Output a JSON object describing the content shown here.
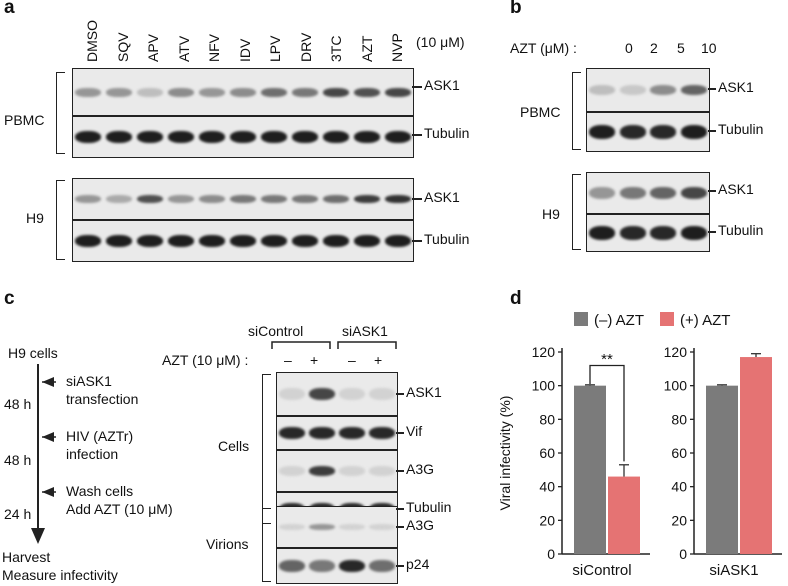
{
  "panels": {
    "a": "a",
    "b": "b",
    "c": "c",
    "d": "d"
  },
  "a": {
    "lanes": [
      "DMSO",
      "SQV",
      "APV",
      "ATV",
      "NFV",
      "IDV",
      "LPV",
      "DRV",
      "3TC",
      "AZT",
      "NVP"
    ],
    "conc": "(10 μM)",
    "groups": [
      "PBMC",
      "H9"
    ],
    "blot_labels": [
      "ASK1",
      "Tubulin",
      "ASK1",
      "Tubulin"
    ]
  },
  "b": {
    "azt_label": "AZT (μM) :",
    "conc": [
      "0",
      "2",
      "5",
      "10"
    ],
    "groups": [
      "PBMC",
      "H9"
    ],
    "blot_labels": [
      "ASK1",
      "Tubulin",
      "ASK1",
      "Tubulin"
    ]
  },
  "c": {
    "timeline": {
      "start": "H9 cells",
      "steps": [
        {
          "time": "48 h",
          "text": "siASK1\ntransfection"
        },
        {
          "time": "48 h",
          "text": "HIV (AZTr)\ninfection"
        },
        {
          "time": "24 h",
          "text": "Wash cells\nAdd AZT (10 μM)"
        }
      ],
      "end": "Harvest\nMeasure infectivity"
    },
    "groups": [
      "siControl",
      "siASK1"
    ],
    "azt_label": "AZT (10 μM) :",
    "signs": [
      "–",
      "+",
      "–",
      "+"
    ],
    "sections": [
      "Cells",
      "Virions"
    ],
    "blot_labels": [
      "ASK1",
      "Vif",
      "A3G",
      "Tubulin",
      "A3G",
      "p24"
    ]
  },
  "chart_data": {
    "type": "bar",
    "ylabel": "Viral infectivity (%)",
    "ylim": [
      0,
      120
    ],
    "yticks": [
      0,
      20,
      40,
      60,
      80,
      100,
      120
    ],
    "legend": [
      "(–) AZT",
      "(+) AZT"
    ],
    "colors": {
      "minus": "#7b7b7b",
      "plus": "#e57373"
    },
    "groups": [
      {
        "name": "siControl",
        "values": [
          100,
          46
        ],
        "errors": [
          0.5,
          7
        ]
      },
      {
        "name": "siASK1",
        "values": [
          100,
          117
        ],
        "errors": [
          0.5,
          2
        ]
      }
    ],
    "annotation": "**"
  }
}
